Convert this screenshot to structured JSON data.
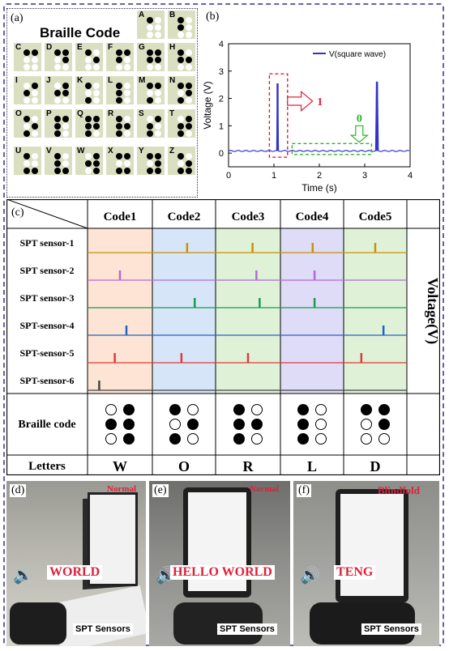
{
  "braille": {
    "label": "(a)",
    "title": "Braille Code",
    "letters": [
      {
        "l": "A",
        "d": [
          1,
          0,
          0,
          0,
          0,
          0
        ]
      },
      {
        "l": "B",
        "d": [
          1,
          0,
          1,
          0,
          0,
          0
        ]
      },
      {
        "l": "C",
        "d": [
          1,
          1,
          0,
          0,
          0,
          0
        ]
      },
      {
        "l": "D",
        "d": [
          1,
          1,
          0,
          1,
          0,
          0
        ]
      },
      {
        "l": "E",
        "d": [
          1,
          0,
          0,
          1,
          0,
          0
        ]
      },
      {
        "l": "F",
        "d": [
          1,
          1,
          1,
          0,
          0,
          0
        ]
      },
      {
        "l": "G",
        "d": [
          1,
          1,
          1,
          1,
          0,
          0
        ]
      },
      {
        "l": "H",
        "d": [
          1,
          0,
          1,
          1,
          0,
          0
        ]
      },
      {
        "l": "I",
        "d": [
          0,
          1,
          1,
          0,
          0,
          0
        ]
      },
      {
        "l": "J",
        "d": [
          0,
          1,
          1,
          1,
          0,
          0
        ]
      },
      {
        "l": "K",
        "d": [
          1,
          0,
          0,
          0,
          1,
          0
        ]
      },
      {
        "l": "L",
        "d": [
          1,
          0,
          1,
          0,
          1,
          0
        ]
      },
      {
        "l": "M",
        "d": [
          1,
          1,
          0,
          0,
          1,
          0
        ]
      },
      {
        "l": "N",
        "d": [
          1,
          1,
          0,
          1,
          1,
          0
        ]
      },
      {
        "l": "O",
        "d": [
          1,
          0,
          0,
          1,
          1,
          0
        ]
      },
      {
        "l": "P",
        "d": [
          1,
          1,
          1,
          0,
          1,
          0
        ]
      },
      {
        "l": "Q",
        "d": [
          1,
          1,
          1,
          1,
          1,
          0
        ]
      },
      {
        "l": "R",
        "d": [
          1,
          0,
          1,
          1,
          1,
          0
        ]
      },
      {
        "l": "S",
        "d": [
          0,
          1,
          1,
          0,
          1,
          0
        ]
      },
      {
        "l": "T",
        "d": [
          0,
          1,
          1,
          1,
          1,
          0
        ]
      },
      {
        "l": "U",
        "d": [
          1,
          0,
          0,
          0,
          1,
          1
        ]
      },
      {
        "l": "V",
        "d": [
          1,
          0,
          1,
          0,
          1,
          1
        ]
      },
      {
        "l": "W",
        "d": [
          0,
          1,
          1,
          1,
          0,
          1
        ]
      },
      {
        "l": "X",
        "d": [
          1,
          1,
          0,
          0,
          1,
          1
        ]
      },
      {
        "l": "Y",
        "d": [
          1,
          1,
          0,
          1,
          1,
          1
        ]
      },
      {
        "l": "Z",
        "d": [
          1,
          0,
          0,
          1,
          1,
          1
        ]
      }
    ]
  },
  "chart_data": {
    "type": "line",
    "panel_label": "(b)",
    "legend": "V(square wave)",
    "xlabel": "Time (s)",
    "ylabel": "Voltage (V)",
    "xlim": [
      0,
      4
    ],
    "ylim": [
      -0.5,
      4
    ],
    "xticks": [
      "0",
      "1",
      "2",
      "3",
      "4"
    ],
    "yticks": [
      "0",
      "1",
      "2",
      "3",
      "4"
    ],
    "baseline": 0.08,
    "spikes": [
      {
        "x": 1.08,
        "y": 2.55
      },
      {
        "x": 3.27,
        "y": 2.6
      }
    ],
    "annotations": [
      {
        "text": "1",
        "color": "#e0203a"
      },
      {
        "text": "0",
        "color": "#2fb32f"
      }
    ],
    "series_color": "#3333cc"
  },
  "table": {
    "label": "(c)",
    "codes": [
      "Code1",
      "Code2",
      "Code3",
      "Code4",
      "Code5"
    ],
    "sensors": [
      "SPT sensor-1",
      "SPT sensor-2",
      "SPT sensor-3",
      "SPT-sensor-4",
      "SPT-sensor-5",
      "SPT-sensor-6"
    ],
    "sensor_colors": [
      "#c9900a",
      "#b36ad6",
      "#1a9a55",
      "#1f64c8",
      "#e03a3a",
      "#444444"
    ],
    "column_colors": [
      "#fde4d4",
      "#d6e6f8",
      "#dff2d8",
      "#dedcf6",
      "#dff2d8"
    ],
    "ylabel": "Voltage(V)",
    "braille_row_label": "Braille code",
    "letters_row_label": "Letters",
    "letters": [
      "W",
      "O",
      "R",
      "L",
      "D"
    ],
    "patterns": [
      [
        0,
        1,
        1,
        1,
        0,
        1
      ],
      [
        1,
        0,
        0,
        1,
        1,
        0
      ],
      [
        1,
        0,
        1,
        1,
        1,
        0
      ],
      [
        1,
        0,
        1,
        0,
        1,
        0
      ],
      [
        1,
        1,
        0,
        1,
        0,
        0
      ]
    ]
  },
  "photos": [
    {
      "label": "(d)",
      "mode": "Normal",
      "word": "WORLD",
      "spt": "SPT Sensors"
    },
    {
      "label": "(e)",
      "mode": "Normal",
      "word": "HELLO WORLD",
      "spt": "SPT Sensors"
    },
    {
      "label": "(f)",
      "mode": "Blindfold",
      "word": "TENG",
      "spt": "SPT Sensors"
    }
  ]
}
